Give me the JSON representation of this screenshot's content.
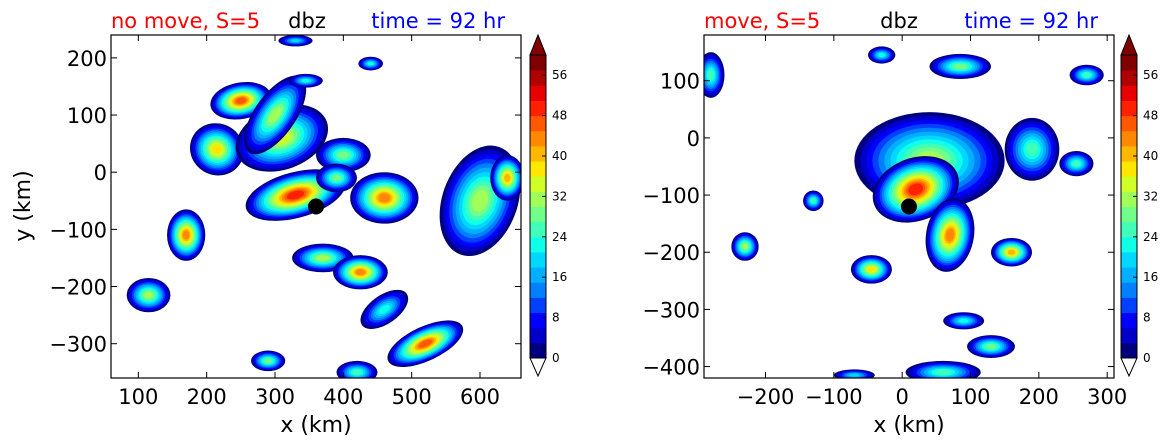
{
  "colors": {
    "title_left": "#ff0000",
    "title_mid": "#000000",
    "title_right": "#0000ff",
    "marker": "#000000",
    "colormap": [
      "#00007f",
      "#0000c8",
      "#0000ff",
      "#0040ff",
      "#0080ff",
      "#00b0ff",
      "#00d8ff",
      "#10ffe8",
      "#40ffb8",
      "#70ff88",
      "#a0ff58",
      "#d0ff28",
      "#ffe800",
      "#ffb800",
      "#ff8800",
      "#ff5800",
      "#ff2000",
      "#e80000",
      "#b00000",
      "#800000"
    ]
  },
  "chart_data": [
    {
      "type": "contourf",
      "title_left": "no move, S=5",
      "title_mid": "dbz",
      "title_right": "time = 92 hr",
      "xlabel": "x (km)",
      "ylabel": "y (km)",
      "xlim": [
        60,
        660
      ],
      "ylim": [
        -360,
        240
      ],
      "xticks": [
        100,
        200,
        300,
        400,
        500,
        600
      ],
      "yticks": [
        200,
        100,
        0,
        -100,
        -200,
        -300
      ],
      "xtick_labels": [
        "100",
        "200",
        "300",
        "400",
        "500",
        "600"
      ],
      "ytick_labels": [
        "200",
        "100",
        "0",
        "−100",
        "−200",
        "−300"
      ],
      "center_marker": {
        "x": 360,
        "y": -60
      },
      "cells": [
        {
          "x": 250,
          "y": 125,
          "rx": 45,
          "ry": 32,
          "peak": 48,
          "rot": -10
        },
        {
          "x": 215,
          "y": 40,
          "rx": 40,
          "ry": 45,
          "peak": 40,
          "rot": 30
        },
        {
          "x": 310,
          "y": 60,
          "rx": 70,
          "ry": 55,
          "peak": 36,
          "rot": -20
        },
        {
          "x": 330,
          "y": -40,
          "rx": 75,
          "ry": 40,
          "peak": 52,
          "rot": -15
        },
        {
          "x": 300,
          "y": 100,
          "rx": 30,
          "ry": 80,
          "peak": 34,
          "rot": 35
        },
        {
          "x": 400,
          "y": 30,
          "rx": 40,
          "ry": 30,
          "peak": 30,
          "rot": 0
        },
        {
          "x": 460,
          "y": -45,
          "rx": 50,
          "ry": 45,
          "peak": 44,
          "rot": 0
        },
        {
          "x": 390,
          "y": -10,
          "rx": 30,
          "ry": 25,
          "peak": 30,
          "rot": 0
        },
        {
          "x": 170,
          "y": -110,
          "rx": 28,
          "ry": 45,
          "peak": 44,
          "rot": 0
        },
        {
          "x": 370,
          "y": -150,
          "rx": 45,
          "ry": 25,
          "peak": 34,
          "rot": 0
        },
        {
          "x": 425,
          "y": -175,
          "rx": 40,
          "ry": 30,
          "peak": 44,
          "rot": 0
        },
        {
          "x": 115,
          "y": -215,
          "rx": 32,
          "ry": 30,
          "peak": 34,
          "rot": 0
        },
        {
          "x": 520,
          "y": -300,
          "rx": 60,
          "ry": 30,
          "peak": 48,
          "rot": -25
        },
        {
          "x": 460,
          "y": -240,
          "rx": 40,
          "ry": 25,
          "peak": 24,
          "rot": -35
        },
        {
          "x": 600,
          "y": -50,
          "rx": 55,
          "ry": 100,
          "peak": 32,
          "rot": 20
        },
        {
          "x": 640,
          "y": -10,
          "rx": 25,
          "ry": 40,
          "peak": 42,
          "rot": 0
        },
        {
          "x": 290,
          "y": -330,
          "rx": 25,
          "ry": 18,
          "peak": 30,
          "rot": 0
        },
        {
          "x": 345,
          "y": 160,
          "rx": 25,
          "ry": 12,
          "peak": 24,
          "rot": 0
        },
        {
          "x": 440,
          "y": 190,
          "rx": 18,
          "ry": 12,
          "peak": 24,
          "rot": 0
        },
        {
          "x": 420,
          "y": -350,
          "rx": 30,
          "ry": 20,
          "peak": 28,
          "rot": 0
        },
        {
          "x": 330,
          "y": 230,
          "rx": 25,
          "ry": 10,
          "peak": 20,
          "rot": 0
        }
      ]
    },
    {
      "type": "contourf",
      "title_left": "move, S=5",
      "title_mid": "dbz",
      "title_right": "time = 92 hr",
      "xlabel": "x (km)",
      "ylabel": "",
      "xlim": [
        -290,
        310
      ],
      "ylim": [
        -420,
        180
      ],
      "xticks": [
        -200,
        -100,
        0,
        100,
        200,
        300
      ],
      "yticks": [
        100,
        0,
        -100,
        -200,
        -300,
        -400
      ],
      "xtick_labels": [
        "−200",
        "−100",
        "0",
        "100",
        "200",
        "300"
      ],
      "ytick_labels": [
        "100",
        "0",
        "−100",
        "−200",
        "−300",
        "−400"
      ],
      "center_marker": {
        "x": 10,
        "y": -120
      },
      "cells": [
        {
          "x": 40,
          "y": -40,
          "rx": 110,
          "ry": 85,
          "peak": 34,
          "rot": 0
        },
        {
          "x": 20,
          "y": -90,
          "rx": 65,
          "ry": 55,
          "peak": 50,
          "rot": -20
        },
        {
          "x": 70,
          "y": -170,
          "rx": 35,
          "ry": 65,
          "peak": 46,
          "rot": 10
        },
        {
          "x": -45,
          "y": -230,
          "rx": 30,
          "ry": 25,
          "peak": 40,
          "rot": 0
        },
        {
          "x": 160,
          "y": -200,
          "rx": 30,
          "ry": 25,
          "peak": 42,
          "rot": 0
        },
        {
          "x": -230,
          "y": -190,
          "rx": 20,
          "ry": 25,
          "peak": 34,
          "rot": 0
        },
        {
          "x": -130,
          "y": -110,
          "rx": 15,
          "ry": 18,
          "peak": 26,
          "rot": 0
        },
        {
          "x": 85,
          "y": 125,
          "rx": 45,
          "ry": 22,
          "peak": 30,
          "rot": 0
        },
        {
          "x": -30,
          "y": 145,
          "rx": 20,
          "ry": 15,
          "peak": 24,
          "rot": 0
        },
        {
          "x": -280,
          "y": 110,
          "rx": 20,
          "ry": 40,
          "peak": 26,
          "rot": 0
        },
        {
          "x": 270,
          "y": 110,
          "rx": 25,
          "ry": 18,
          "peak": 28,
          "rot": 0
        },
        {
          "x": 255,
          "y": -45,
          "rx": 25,
          "ry": 22,
          "peak": 26,
          "rot": 0
        },
        {
          "x": 90,
          "y": -320,
          "rx": 30,
          "ry": 15,
          "peak": 24,
          "rot": 0
        },
        {
          "x": 130,
          "y": -365,
          "rx": 35,
          "ry": 20,
          "peak": 30,
          "rot": 0
        },
        {
          "x": 60,
          "y": -410,
          "rx": 55,
          "ry": 20,
          "peak": 28,
          "rot": 0
        },
        {
          "x": -70,
          "y": -415,
          "rx": 30,
          "ry": 10,
          "peak": 20,
          "rot": 0
        },
        {
          "x": 190,
          "y": -20,
          "rx": 40,
          "ry": 55,
          "peak": 26,
          "rot": 0
        }
      ]
    }
  ],
  "colorbar": {
    "ticks": [
      0,
      8,
      16,
      24,
      32,
      40,
      48,
      56
    ],
    "tick_labels": [
      "0",
      "8",
      "16",
      "24",
      "32",
      "40",
      "48",
      "56"
    ],
    "min": 0,
    "max": 60,
    "levels": 20
  }
}
